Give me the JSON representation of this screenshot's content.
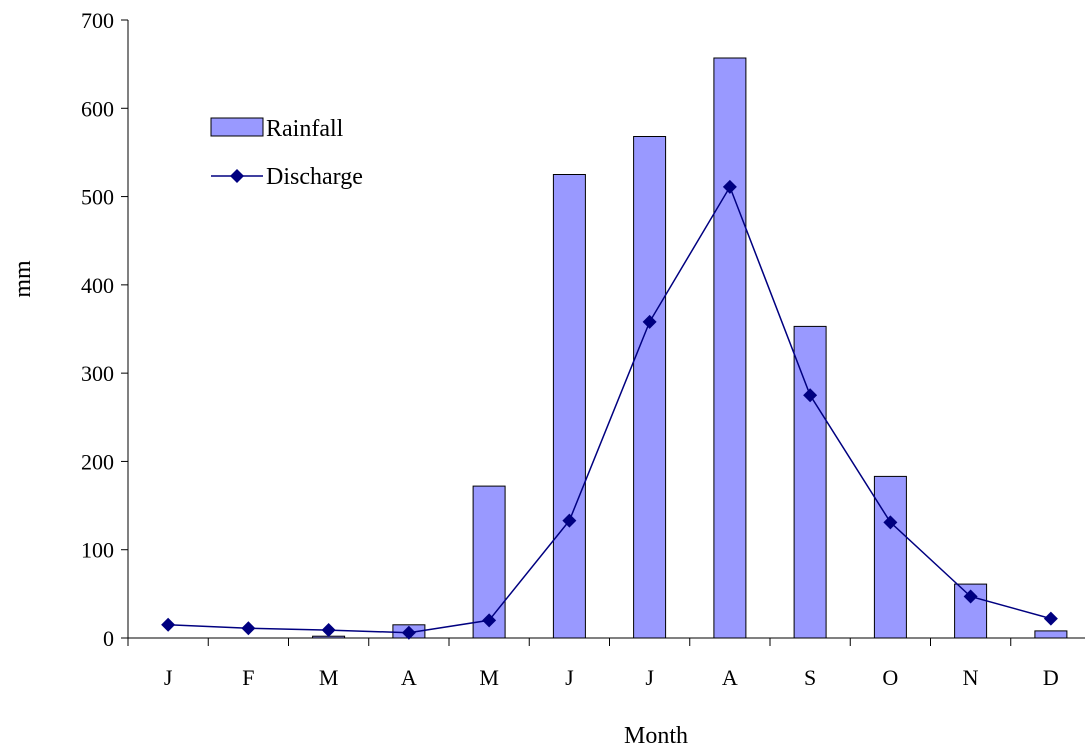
{
  "chart_data": {
    "type": "bar",
    "title": "",
    "xlabel": "Month",
    "ylabel": "mm",
    "categories": [
      "J",
      "F",
      "M",
      "A",
      "M",
      "J",
      "J",
      "A",
      "S",
      "O",
      "N",
      "D"
    ],
    "ylim": [
      0,
      700
    ],
    "yticks": [
      0,
      100,
      200,
      300,
      400,
      500,
      600,
      700
    ],
    "grid": false,
    "legend_position": "top-left",
    "series": [
      {
        "name": "Rainfall",
        "type": "bar",
        "color": "#9999ff",
        "values": [
          0,
          0,
          2,
          15,
          172,
          525,
          568,
          657,
          353,
          183,
          61,
          8
        ]
      },
      {
        "name": "Discharge",
        "type": "line",
        "marker": "diamond",
        "color": "#000080",
        "values": [
          15,
          11,
          9,
          6,
          20,
          133,
          358,
          511,
          275,
          131,
          47,
          22
        ]
      }
    ]
  }
}
